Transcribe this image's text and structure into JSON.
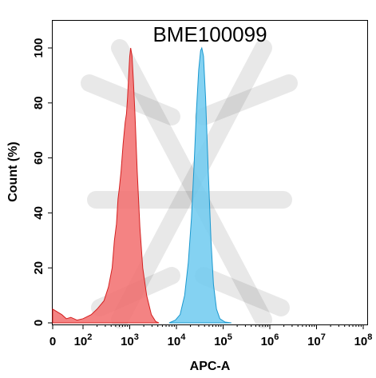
{
  "chart_data": {
    "type": "area",
    "title": "BME100099",
    "xlabel": "APC-A",
    "ylabel": "Count (%)",
    "x_scale": "log",
    "x_tick_labels": [
      {
        "base": "0",
        "exp": ""
      },
      {
        "base": "10",
        "exp": "2"
      },
      {
        "base": "10",
        "exp": "3"
      },
      {
        "base": "10",
        "exp": "4"
      },
      {
        "base": "10",
        "exp": "5"
      },
      {
        "base": "10",
        "exp": "6"
      },
      {
        "base": "10",
        "exp": "7"
      },
      {
        "base": "10",
        "exp": "8"
      }
    ],
    "y_ticks": [
      "0",
      "20",
      "40",
      "60",
      "80",
      "100"
    ],
    "ylim": [
      0,
      100
    ],
    "series": [
      {
        "color": "#f26d6d",
        "stroke": "#d42020",
        "points": [
          [
            0,
            5
          ],
          [
            30,
            3
          ],
          [
            45,
            1.5
          ],
          [
            60,
            2
          ],
          [
            80,
            1
          ],
          [
            100,
            1.5
          ],
          [
            150,
            3
          ],
          [
            200,
            5
          ],
          [
            280,
            8
          ],
          [
            350,
            13
          ],
          [
            420,
            20
          ],
          [
            470,
            30
          ],
          [
            520,
            36
          ],
          [
            560,
            45
          ],
          [
            600,
            49
          ],
          [
            650,
            55
          ],
          [
            720,
            65
          ],
          [
            800,
            73
          ],
          [
            850,
            76
          ],
          [
            900,
            82
          ],
          [
            950,
            90
          ],
          [
            1000,
            97
          ],
          [
            1050,
            100
          ],
          [
            1120,
            97
          ],
          [
            1200,
            88
          ],
          [
            1300,
            75
          ],
          [
            1450,
            55
          ],
          [
            1650,
            35
          ],
          [
            1900,
            20
          ],
          [
            2300,
            10
          ],
          [
            2900,
            3
          ],
          [
            3600,
            0.5
          ],
          [
            4200,
            0
          ]
        ]
      },
      {
        "color": "#6fcaf0",
        "stroke": "#1a98cf",
        "points": [
          [
            7000,
            0
          ],
          [
            9500,
            1
          ],
          [
            12000,
            3
          ],
          [
            15000,
            10
          ],
          [
            18000,
            22
          ],
          [
            21000,
            38
          ],
          [
            24000,
            58
          ],
          [
            27000,
            78
          ],
          [
            30000,
            92
          ],
          [
            33000,
            99
          ],
          [
            35000,
            100
          ],
          [
            38000,
            97
          ],
          [
            42000,
            82
          ],
          [
            48000,
            55
          ],
          [
            55000,
            30
          ],
          [
            62000,
            14
          ],
          [
            72000,
            5
          ],
          [
            85000,
            1.5
          ],
          [
            110000,
            0.3
          ],
          [
            150000,
            0
          ]
        ]
      }
    ]
  }
}
